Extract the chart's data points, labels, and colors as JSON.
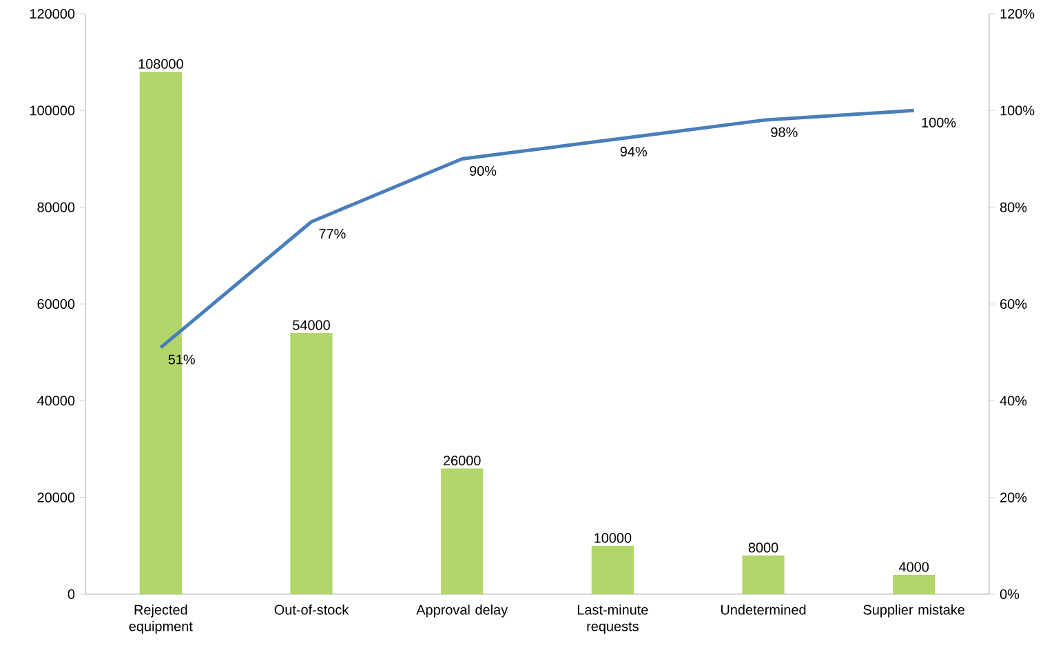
{
  "chart_data": {
    "type": "bar",
    "categories": [
      "Rejected equipment",
      "Out-of-stock",
      "Approval delay",
      "Last-minute requests",
      "Undetermined",
      "Supplier mistake"
    ],
    "series": [
      {
        "color": "#b3d66a",
        "values": [
          108000,
          54000,
          26000,
          10000,
          8000,
          4000
        ],
        "value_labels": [
          "108000",
          "54000",
          "26000",
          "10000",
          "8000",
          "4000"
        ]
      },
      {
        "type": "line",
        "axis": "y2",
        "color": "#4a7ebb",
        "values": [
          51,
          77,
          90,
          94,
          98,
          100
        ],
        "value_labels": [
          "51%",
          "77%",
          "90%",
          "94%",
          "98%",
          "100%"
        ]
      }
    ],
    "ylim": [
      0,
      120000
    ],
    "yticks": [
      0,
      20000,
      40000,
      60000,
      80000,
      100000,
      120000
    ],
    "y2lim": [
      0,
      120
    ],
    "y2ticks": [
      {
        "value": 0,
        "label": "0%"
      },
      {
        "value": 20,
        "label": "20%"
      },
      {
        "value": 40,
        "label": "40%"
      },
      {
        "value": 60,
        "label": "60%"
      },
      {
        "value": 80,
        "label": "80%"
      },
      {
        "value": 100,
        "label": "100%"
      },
      {
        "value": 120,
        "label": "120%"
      }
    ],
    "grid": false,
    "legend": false,
    "marker": "none"
  }
}
